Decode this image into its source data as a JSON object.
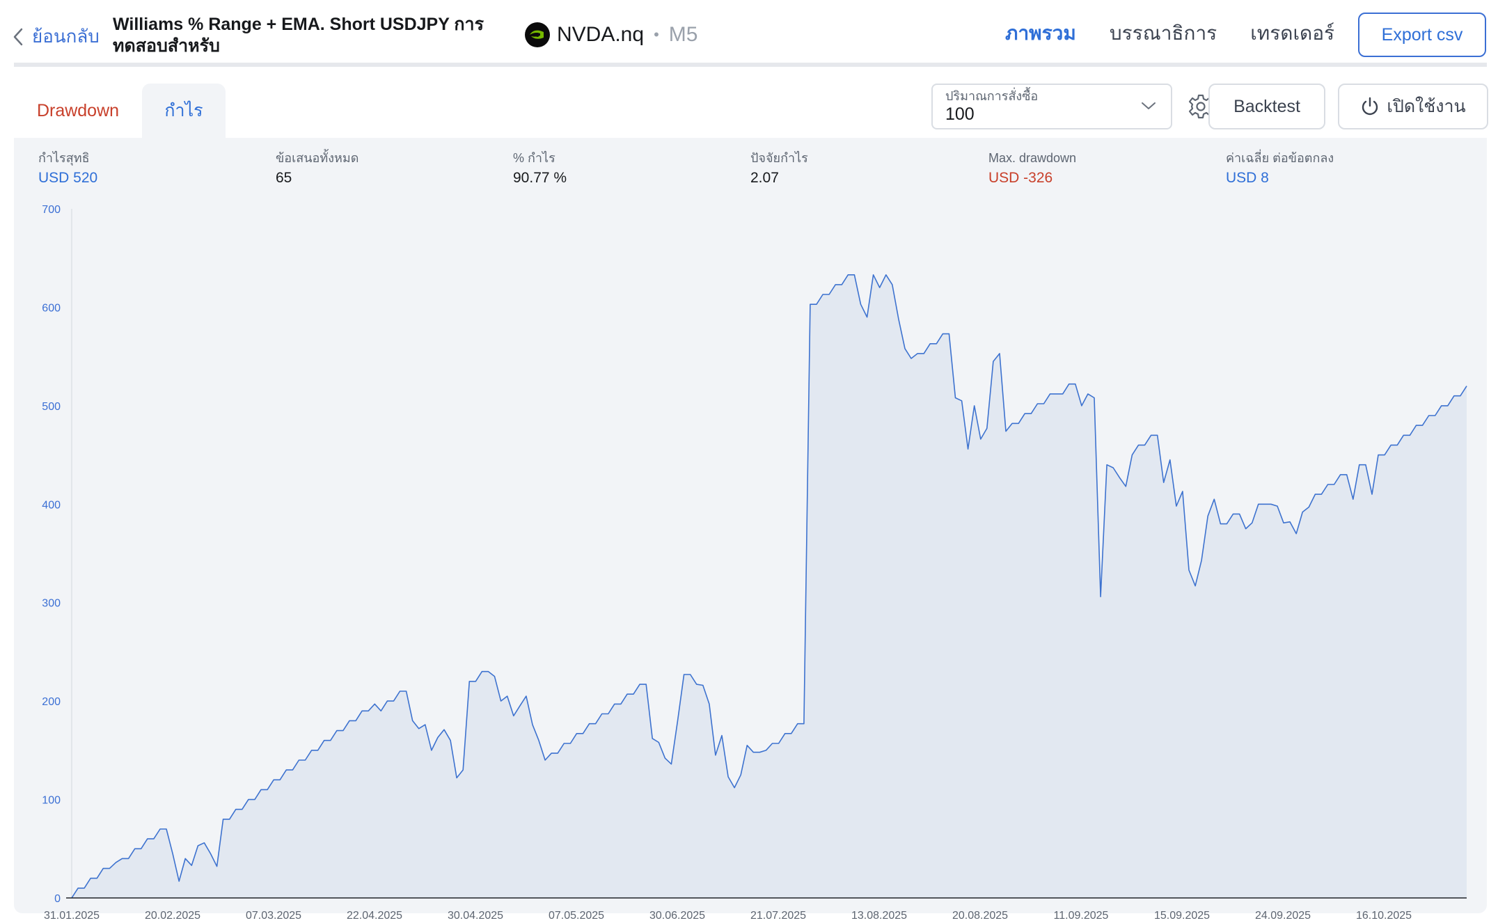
{
  "header": {
    "back_label": "ย้อนกลับ",
    "title": "Williams % Range + EMA. Short USDJPY การทดสอบสำหรับ",
    "symbol": "NVDA.nq",
    "separator": "•",
    "timeframe": "M5",
    "symbol_icon": "nvidia-logo-icon"
  },
  "nav": {
    "tabs": [
      {
        "label": "ภาพรวม",
        "active": true
      },
      {
        "label": "บรรณาธิการ",
        "active": false
      },
      {
        "label": "เทรดเดอร์",
        "active": false
      }
    ],
    "export_label": "Export csv"
  },
  "subtabs": {
    "drawdown_label": "Drawdown",
    "profit_label": "กำไร",
    "active": "profit"
  },
  "order_volume": {
    "label": "ปริมาณการสั่งซื้อ",
    "value": "100"
  },
  "buttons": {
    "backtest_label": "Backtest",
    "enable_label": "เปิดใช้งาน"
  },
  "stats": [
    {
      "label": "กำไรสุทธิ",
      "value": "USD 520",
      "tone": "blue"
    },
    {
      "label": "ข้อเสนอทั้งหมด",
      "value": "65",
      "tone": "default"
    },
    {
      "label": "% กำไร",
      "value": "90.77 %",
      "tone": "default"
    },
    {
      "label": "ปัจจัยกำไร",
      "value": "2.07",
      "tone": "default"
    },
    {
      "label": "Max. drawdown",
      "value": "USD -326",
      "tone": "red"
    },
    {
      "label": "ค่าเฉลี่ย ต่อข้อตกลง",
      "value": "USD 8",
      "tone": "blue"
    }
  ],
  "colors": {
    "accent": "#2f6fd7",
    "negative": "#c8402b",
    "line": "#3d72cf",
    "area": "#e2e8f1"
  },
  "chart_data": {
    "type": "area",
    "ylim": [
      0,
      700
    ],
    "y_ticks": [
      0,
      100,
      200,
      300,
      400,
      500,
      600,
      700
    ],
    "x_tick_labels": [
      "31.01.2025",
      "20.02.2025",
      "07.03.2025",
      "22.04.2025",
      "30.04.2025",
      "07.05.2025",
      "30.06.2025",
      "21.07.2025",
      "13.08.2025",
      "20.08.2025",
      "11.09.2025",
      "15.09.2025",
      "24.09.2025",
      "16.10.2025"
    ],
    "grid": false,
    "series": [
      {
        "values": [
          0,
          10,
          10,
          20,
          20,
          30,
          30,
          36,
          40,
          40,
          50,
          50,
          60,
          60,
          70,
          70,
          45,
          17,
          40,
          33,
          53,
          56,
          45,
          32,
          80,
          80,
          90,
          90,
          100,
          100,
          110,
          110,
          120,
          120,
          130,
          130,
          140,
          140,
          150,
          150,
          160,
          160,
          170,
          170,
          180,
          180,
          190,
          190,
          197,
          190,
          200,
          200,
          210,
          210,
          180,
          172,
          176,
          150,
          163,
          171,
          160,
          122,
          130,
          220,
          220,
          230,
          230,
          225,
          200,
          205,
          185,
          195,
          205,
          176,
          160,
          140,
          147,
          147,
          157,
          157,
          167,
          167,
          177,
          177,
          187,
          187,
          197,
          197,
          207,
          207,
          217,
          217,
          162,
          158,
          142,
          136,
          180,
          227,
          227,
          217,
          216,
          197,
          145,
          165,
          123,
          112,
          125,
          155,
          148,
          148,
          150,
          157,
          157,
          167,
          167,
          177,
          177,
          603,
          603,
          613,
          613,
          623,
          623,
          633,
          633,
          603,
          590,
          633,
          620,
          633,
          623,
          588,
          558,
          548,
          553,
          553,
          563,
          563,
          573,
          573,
          508,
          505,
          456,
          500,
          466,
          477,
          545,
          553,
          474,
          482,
          482,
          492,
          492,
          502,
          502,
          512,
          512,
          512,
          522,
          522,
          500,
          512,
          508,
          306,
          440,
          437,
          427,
          418,
          450,
          460,
          460,
          470,
          470,
          422,
          445,
          398,
          413,
          333,
          317,
          343,
          388,
          405,
          380,
          380,
          390,
          390,
          375,
          381,
          400,
          400,
          400,
          398,
          381,
          382,
          370,
          392,
          397,
          410,
          410,
          420,
          420,
          430,
          430,
          405,
          440,
          440,
          410,
          450,
          450,
          460,
          460,
          470,
          470,
          480,
          480,
          490,
          490,
          500,
          500,
          510,
          510,
          520
        ]
      }
    ]
  }
}
